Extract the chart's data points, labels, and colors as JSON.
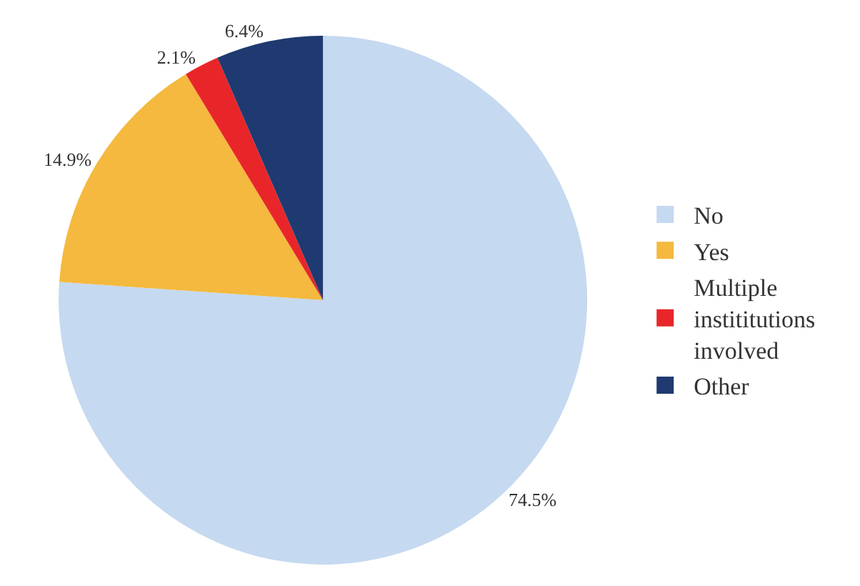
{
  "chart_data": {
    "type": "pie",
    "categories": [
      "No",
      "Yes",
      "Multiple instititutions involved",
      "Other"
    ],
    "values": [
      74.5,
      14.9,
      2.1,
      6.4
    ],
    "colors": [
      "#c5d9f0",
      "#f4b93e",
      "#e8262a",
      "#1f3a70"
    ],
    "value_labels": [
      "74.5%",
      "14.9%",
      "2.1%",
      "6.4%"
    ],
    "legend": "right"
  }
}
